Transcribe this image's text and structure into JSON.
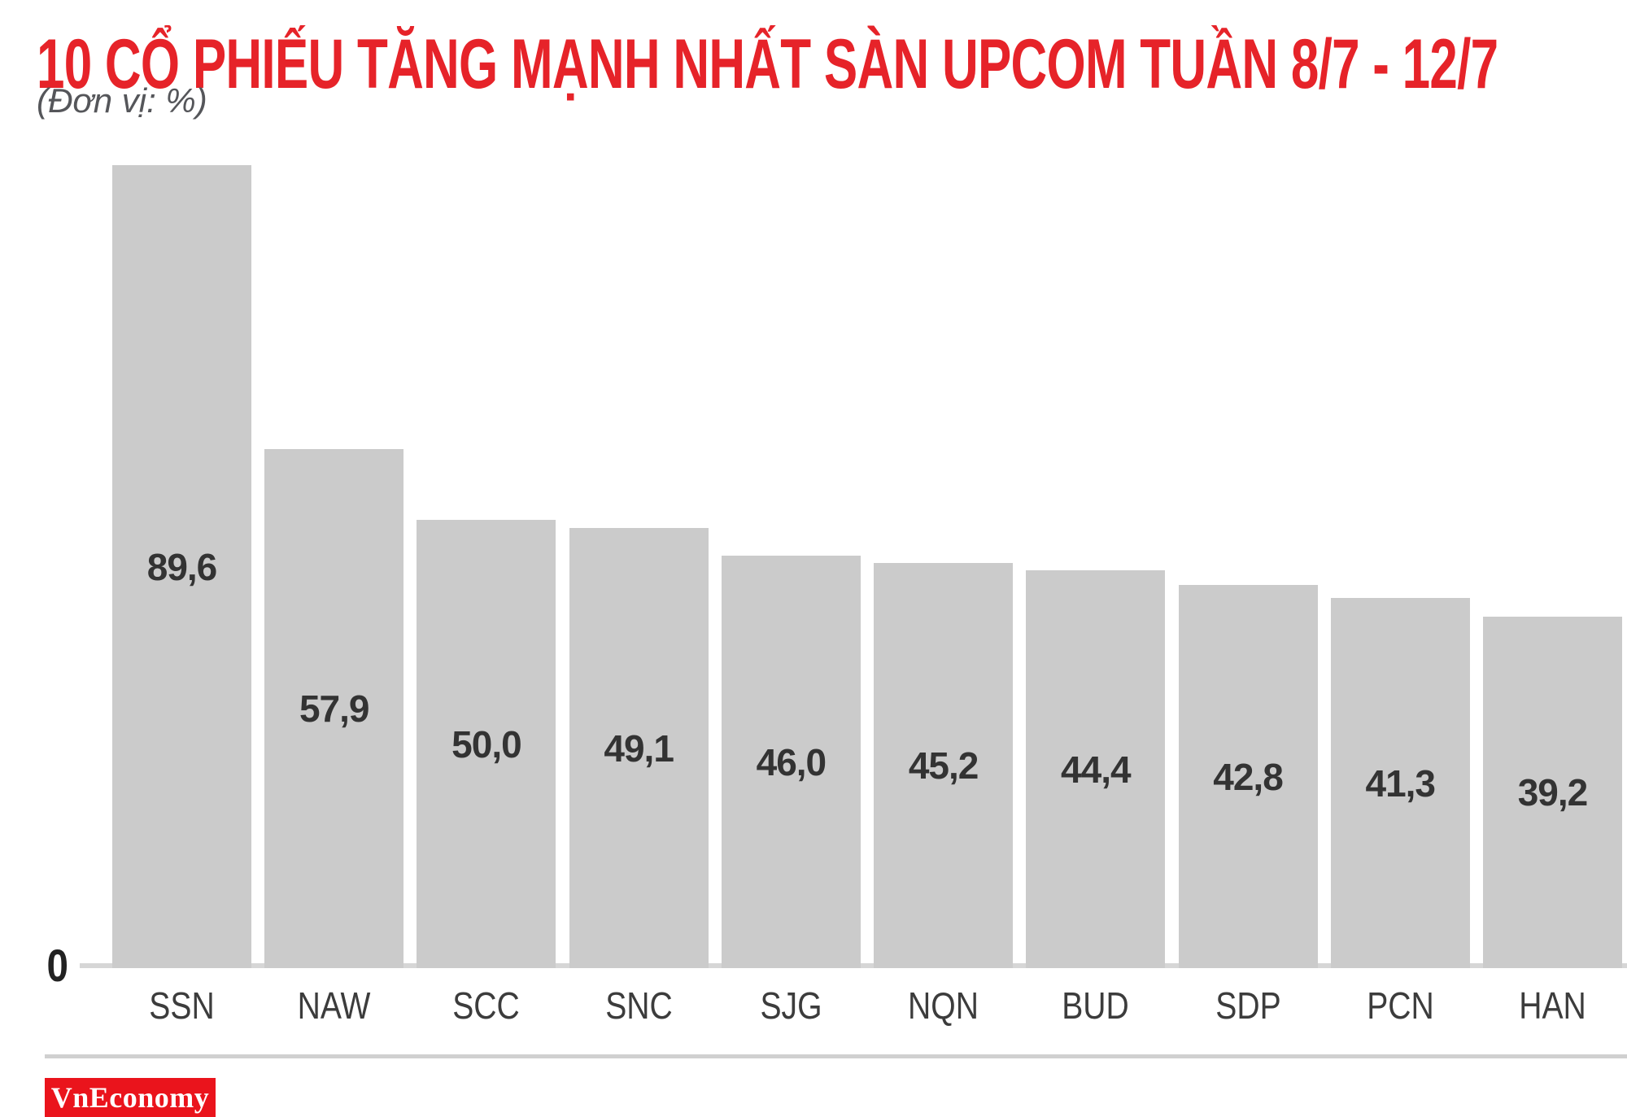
{
  "title": "10 CỔ PHIẾU TĂNG MẠNH NHẤT SÀN UPCOM TUẦN 8/7 - 12/7",
  "subtitle": "(Đơn vị: %)",
  "axis": {
    "zero_label": "0"
  },
  "branding": {
    "logo_text": "VnEconomy"
  },
  "colors": {
    "title_red": "#e62329",
    "logo_red": "#ea141c",
    "bar_gray": "#cbcbcb",
    "axis_gray": "#d6d6d6",
    "divider_gray": "#d0d0d0",
    "value_text": "#333333",
    "xlabel_text": "#3c3c3c",
    "zero_text": "#222222",
    "subtitle_gray": "#55565a"
  },
  "chart_data": {
    "type": "bar",
    "title": "10 CỔ PHIẾU TĂNG MẠNH NHẤT SÀN UPCOM TUẦN 8/7 - 12/7",
    "subtitle": "(Đơn vị: %)",
    "unit": "%",
    "categories": [
      "SSN",
      "NAW",
      "SCC",
      "SNC",
      "SJG",
      "NQN",
      "BUD",
      "SDP",
      "PCN",
      "HAN"
    ],
    "values": [
      89.6,
      57.9,
      50.0,
      49.1,
      46.0,
      45.2,
      44.4,
      42.8,
      41.3,
      39.2
    ],
    "value_labels": [
      "89,6",
      "57,9",
      "50,0",
      "49,1",
      "46,0",
      "45,2",
      "44,4",
      "42,8",
      "41,3",
      "39,2"
    ],
    "ylim": [
      0,
      90
    ],
    "y_axis_ticks": [
      "0"
    ],
    "grid": false,
    "legend": false,
    "bar_orientation": "vertical",
    "value_label_position": "inside-center"
  }
}
